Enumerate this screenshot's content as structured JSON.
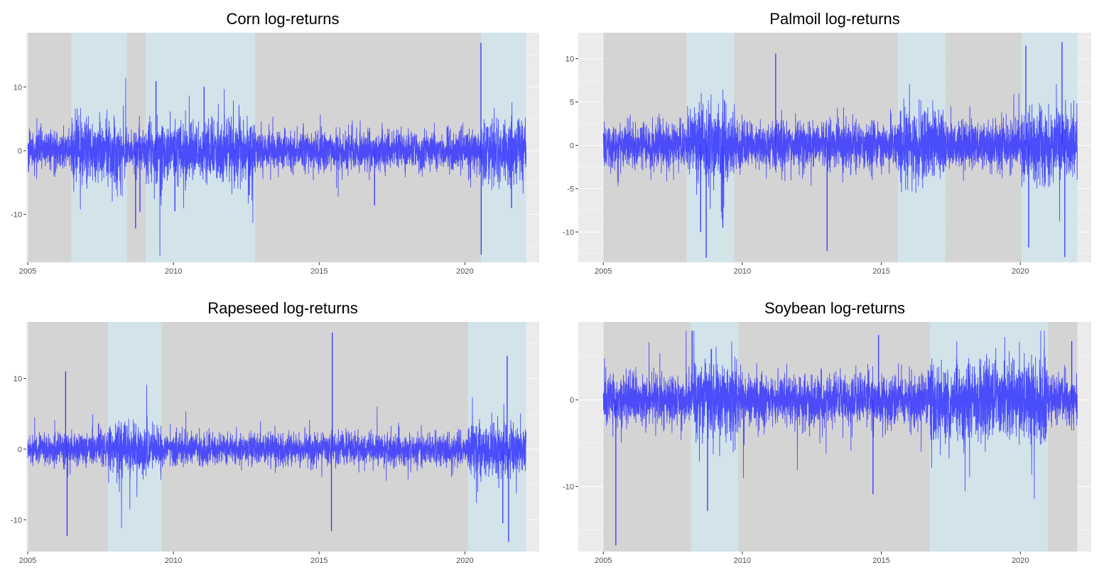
{
  "chart_data": [
    {
      "type": "line",
      "title": "Corn log-returns",
      "xlabel": "",
      "ylabel": "",
      "xlim": [
        2004.95,
        2022.55
      ],
      "ylim": [
        -17.5,
        18.5
      ],
      "x_ticks": [
        2005,
        2010,
        2015,
        2020
      ],
      "y_ticks": [
        -10,
        0,
        10
      ],
      "grid": true,
      "series_color": "#3333FF",
      "regimes": [
        {
          "start": 2005.0,
          "end": 2006.5,
          "state": "low"
        },
        {
          "start": 2006.5,
          "end": 2008.4,
          "state": "high"
        },
        {
          "start": 2008.4,
          "end": 2009.05,
          "state": "low"
        },
        {
          "start": 2009.05,
          "end": 2012.8,
          "state": "high"
        },
        {
          "start": 2012.8,
          "end": 2020.55,
          "state": "low"
        },
        {
          "start": 2020.55,
          "end": 2022.1,
          "state": "high"
        }
      ],
      "base_sd": 1.5,
      "spikes": [
        {
          "x": 2008.7,
          "y": -12.2
        },
        {
          "x": 2008.85,
          "y": -9.6
        },
        {
          "x": 2009.4,
          "y": 10.9
        },
        {
          "x": 2010.05,
          "y": -9.5
        },
        {
          "x": 2011.05,
          "y": 10.0
        },
        {
          "x": 2012.6,
          "y": -7.0
        },
        {
          "x": 2016.9,
          "y": -8.6
        },
        {
          "x": 2020.55,
          "y": 16.9
        },
        {
          "x": 2020.56,
          "y": -16.3
        },
        {
          "x": 2021.6,
          "y": -9.0
        }
      ]
    },
    {
      "type": "line",
      "title": "Palmoil log-returns",
      "xlabel": "",
      "ylabel": "",
      "xlim": [
        2004.1,
        2022.55
      ],
      "ylim": [
        -13.5,
        13.0
      ],
      "x_ticks": [
        2005,
        2010,
        2015,
        2020
      ],
      "y_ticks": [
        -10,
        -5,
        0,
        5,
        10
      ],
      "grid": true,
      "series_color": "#3333FF",
      "regimes": [
        {
          "start": 2005.0,
          "end": 2008.0,
          "state": "low"
        },
        {
          "start": 2008.0,
          "end": 2009.7,
          "state": "high"
        },
        {
          "start": 2009.7,
          "end": 2015.6,
          "state": "low"
        },
        {
          "start": 2015.6,
          "end": 2017.3,
          "state": "high"
        },
        {
          "start": 2017.3,
          "end": 2020.05,
          "state": "low"
        },
        {
          "start": 2020.05,
          "end": 2022.05,
          "state": "high"
        }
      ],
      "base_sd": 1.3,
      "spikes": [
        {
          "x": 2008.7,
          "y": -13.0
        },
        {
          "x": 2008.5,
          "y": -10.0
        },
        {
          "x": 2009.3,
          "y": -9.5
        },
        {
          "x": 2011.2,
          "y": 10.6
        },
        {
          "x": 2013.05,
          "y": -12.2
        },
        {
          "x": 2020.2,
          "y": 11.5
        },
        {
          "x": 2020.3,
          "y": -11.8
        },
        {
          "x": 2021.5,
          "y": 11.9
        },
        {
          "x": 2021.6,
          "y": -12.9
        }
      ]
    },
    {
      "type": "line",
      "title": "Rapeseed log-returns",
      "xlabel": "",
      "ylabel": "",
      "xlim": [
        2004.95,
        2022.55
      ],
      "ylim": [
        -14.5,
        18.0
      ],
      "x_ticks": [
        2005,
        2010,
        2015,
        2020
      ],
      "y_ticks": [
        -10,
        0,
        10
      ],
      "grid": true,
      "series_color": "#3333FF",
      "regimes": [
        {
          "start": 2005.0,
          "end": 2007.75,
          "state": "low"
        },
        {
          "start": 2007.75,
          "end": 2009.6,
          "state": "high"
        },
        {
          "start": 2009.6,
          "end": 2020.1,
          "state": "low"
        },
        {
          "start": 2020.1,
          "end": 2022.1,
          "state": "high"
        }
      ],
      "base_sd": 1.1,
      "spikes": [
        {
          "x": 2006.3,
          "y": 11.0
        },
        {
          "x": 2006.35,
          "y": -12.3
        },
        {
          "x": 2015.45,
          "y": 16.5
        },
        {
          "x": 2015.42,
          "y": -11.6
        },
        {
          "x": 2021.45,
          "y": 13.2
        },
        {
          "x": 2021.5,
          "y": -13.1
        },
        {
          "x": 2021.3,
          "y": -10.5
        }
      ]
    },
    {
      "type": "line",
      "title": "Soybean log-returns",
      "xlabel": "",
      "ylabel": "",
      "xlim": [
        2004.1,
        2022.55
      ],
      "ylim": [
        -17.5,
        9.0
      ],
      "x_ticks": [
        2005,
        2010,
        2015,
        2020
      ],
      "y_ticks": [
        -10,
        0
      ],
      "grid": true,
      "series_color": "#3333FF",
      "regimes": [
        {
          "start": 2005.0,
          "end": 2008.15,
          "state": "low"
        },
        {
          "start": 2008.15,
          "end": 2009.85,
          "state": "high"
        },
        {
          "start": 2009.85,
          "end": 2016.75,
          "state": "low"
        },
        {
          "start": 2016.75,
          "end": 2021.0,
          "state": "high"
        },
        {
          "start": 2021.0,
          "end": 2022.05,
          "state": "low"
        }
      ],
      "base_sd": 1.4,
      "spikes": [
        {
          "x": 2005.45,
          "y": -16.8
        },
        {
          "x": 2008.75,
          "y": -12.8
        },
        {
          "x": 2014.7,
          "y": -10.9
        },
        {
          "x": 2014.9,
          "y": 7.5
        },
        {
          "x": 2021.85,
          "y": 6.8
        }
      ]
    }
  ],
  "colors": {
    "panel_bg": "#EBEBEB",
    "regime_low": "#D4D4D4",
    "regime_high": "#D2E3EA",
    "grid": "#FFFFFF",
    "series": "#3333FF"
  }
}
